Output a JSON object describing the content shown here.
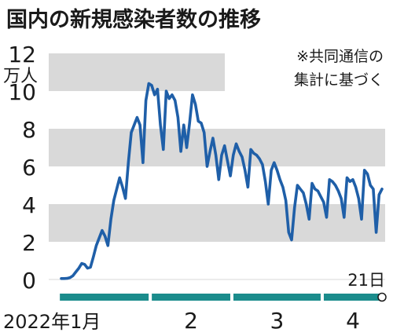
{
  "chart_data": {
    "type": "line",
    "title": "国内の新規感染者数の推移",
    "y_unit_label": "万人",
    "note_lines": [
      "※共同通信の",
      "集計に基づく"
    ],
    "end_label": "21日",
    "ylim": [
      0,
      12
    ],
    "y_ticks": [
      0,
      2,
      4,
      6,
      8,
      10,
      12
    ],
    "grid": "alternating horizontal bands",
    "x_range": [
      "2022-01-01",
      "2022-04-21"
    ],
    "months": [
      {
        "label": "2022年1月",
        "start": "2022-01-01",
        "end": "2022-01-31"
      },
      {
        "label": "2",
        "start": "2022-02-01",
        "end": "2022-02-28"
      },
      {
        "label": "3",
        "start": "2022-03-01",
        "end": "2022-03-31"
      },
      {
        "label": "4",
        "start": "2022-04-01",
        "end": "2022-04-21"
      }
    ],
    "series": [
      {
        "color": "#1f5fa8",
        "x": [
          "2022-01-01",
          "2022-01-02",
          "2022-01-03",
          "2022-01-04",
          "2022-01-05",
          "2022-01-06",
          "2022-01-07",
          "2022-01-08",
          "2022-01-09",
          "2022-01-10",
          "2022-01-11",
          "2022-01-12",
          "2022-01-13",
          "2022-01-14",
          "2022-01-15",
          "2022-01-16",
          "2022-01-17",
          "2022-01-18",
          "2022-01-19",
          "2022-01-20",
          "2022-01-21",
          "2022-01-22",
          "2022-01-23",
          "2022-01-24",
          "2022-01-25",
          "2022-01-26",
          "2022-01-27",
          "2022-01-28",
          "2022-01-29",
          "2022-01-30",
          "2022-01-31",
          "2022-02-01",
          "2022-02-02",
          "2022-02-03",
          "2022-02-04",
          "2022-02-05",
          "2022-02-06",
          "2022-02-07",
          "2022-02-08",
          "2022-02-09",
          "2022-02-10",
          "2022-02-11",
          "2022-02-12",
          "2022-02-13",
          "2022-02-14",
          "2022-02-15",
          "2022-02-16",
          "2022-02-17",
          "2022-02-18",
          "2022-02-19",
          "2022-02-20",
          "2022-02-21",
          "2022-02-22",
          "2022-02-23",
          "2022-02-24",
          "2022-02-25",
          "2022-02-26",
          "2022-02-27",
          "2022-02-28",
          "2022-03-01",
          "2022-03-02",
          "2022-03-03",
          "2022-03-04",
          "2022-03-05",
          "2022-03-06",
          "2022-03-07",
          "2022-03-08",
          "2022-03-09",
          "2022-03-10",
          "2022-03-11",
          "2022-03-12",
          "2022-03-13",
          "2022-03-14",
          "2022-03-15",
          "2022-03-16",
          "2022-03-17",
          "2022-03-18",
          "2022-03-19",
          "2022-03-20",
          "2022-03-21",
          "2022-03-22",
          "2022-03-23",
          "2022-03-24",
          "2022-03-25",
          "2022-03-26",
          "2022-03-27",
          "2022-03-28",
          "2022-03-29",
          "2022-03-30",
          "2022-03-31",
          "2022-04-01",
          "2022-04-02",
          "2022-04-03",
          "2022-04-04",
          "2022-04-05",
          "2022-04-06",
          "2022-04-07",
          "2022-04-08",
          "2022-04-09",
          "2022-04-10",
          "2022-04-11",
          "2022-04-12",
          "2022-04-13",
          "2022-04-14",
          "2022-04-15",
          "2022-04-16",
          "2022-04-17",
          "2022-04-18",
          "2022-04-19",
          "2022-04-20",
          "2022-04-21"
        ],
        "values": [
          0.05,
          0.05,
          0.06,
          0.1,
          0.2,
          0.4,
          0.6,
          0.85,
          0.8,
          0.6,
          0.65,
          1.2,
          1.8,
          2.2,
          2.6,
          2.3,
          1.8,
          3.2,
          4.2,
          4.8,
          5.4,
          4.9,
          4.3,
          6.2,
          7.8,
          8.2,
          8.6,
          8.2,
          6.2,
          9.5,
          10.4,
          10.3,
          9.8,
          10.1,
          8.2,
          6.9,
          10.0,
          9.6,
          9.8,
          9.5,
          8.6,
          6.8,
          8.2,
          7.0,
          8.3,
          9.8,
          9.3,
          8.4,
          8.3,
          7.8,
          6.0,
          6.8,
          7.5,
          6.6,
          5.3,
          6.6,
          7.1,
          6.3,
          5.5,
          6.6,
          7.2,
          6.8,
          6.5,
          5.8,
          4.9,
          6.9,
          6.7,
          6.6,
          6.4,
          6.1,
          5.2,
          4.0,
          5.8,
          6.2,
          5.8,
          5.3,
          4.9,
          4.2,
          2.5,
          2.1,
          3.8,
          5.0,
          4.8,
          4.6,
          4.0,
          3.2,
          5.1,
          4.8,
          4.7,
          4.4,
          4.1,
          3.3,
          5.3,
          5.2,
          5.0,
          4.7,
          4.3,
          3.3,
          5.4,
          5.2,
          5.3,
          4.9,
          4.3,
          3.2,
          5.8,
          5.6,
          5.0,
          4.8,
          2.5,
          4.5,
          4.8
        ]
      }
    ]
  }
}
